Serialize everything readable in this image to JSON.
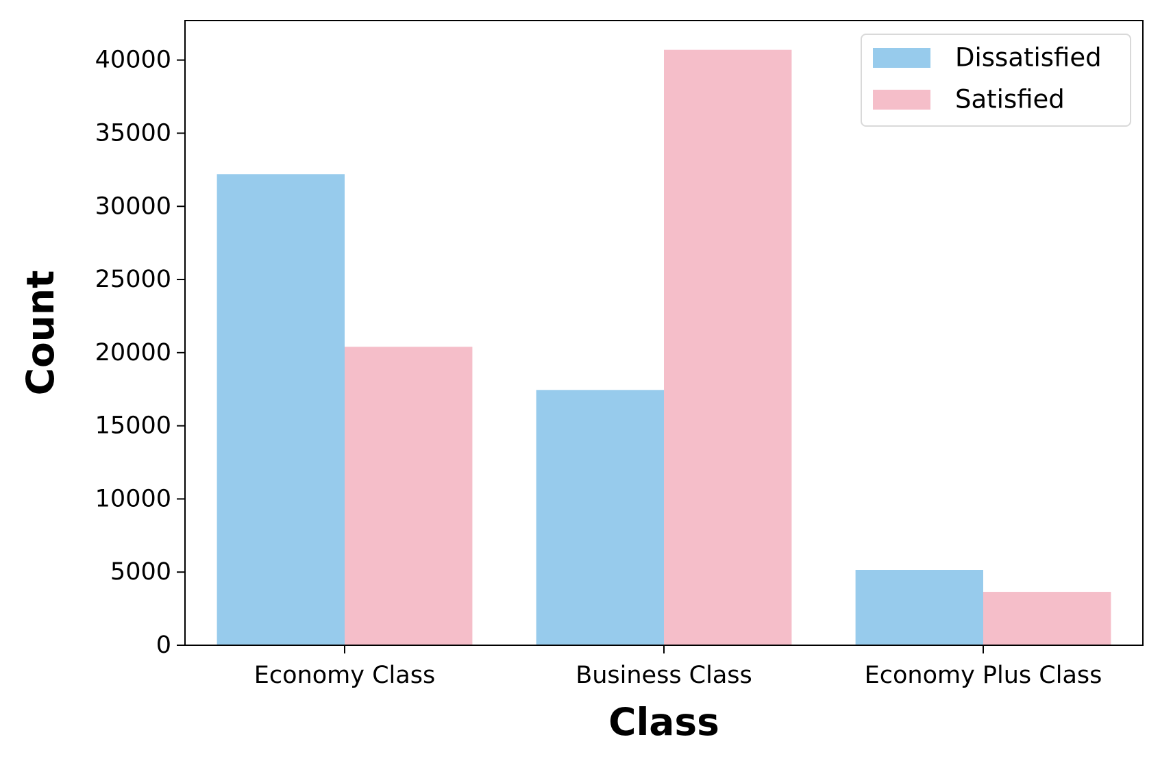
{
  "chart_data": {
    "type": "bar",
    "title": "",
    "xlabel": "Class",
    "ylabel": "Count",
    "categories": [
      "Economy Class",
      "Business Class",
      "Economy Plus Class"
    ],
    "series": [
      {
        "name": "Dissatisfied",
        "color": "#97CBEC",
        "values": [
          32200,
          17450,
          5150
        ]
      },
      {
        "name": "Satisfied",
        "color": "#F5BEC9",
        "values": [
          20400,
          40700,
          3650
        ]
      }
    ],
    "ylim": [
      0,
      42700
    ],
    "yticks": [
      0,
      5000,
      10000,
      15000,
      20000,
      25000,
      30000,
      35000,
      40000
    ],
    "ytick_labels": [
      "0",
      "5000",
      "10000",
      "15000",
      "20000",
      "25000",
      "30000",
      "35000",
      "40000"
    ],
    "grid": false,
    "legend_position": "top-right"
  }
}
